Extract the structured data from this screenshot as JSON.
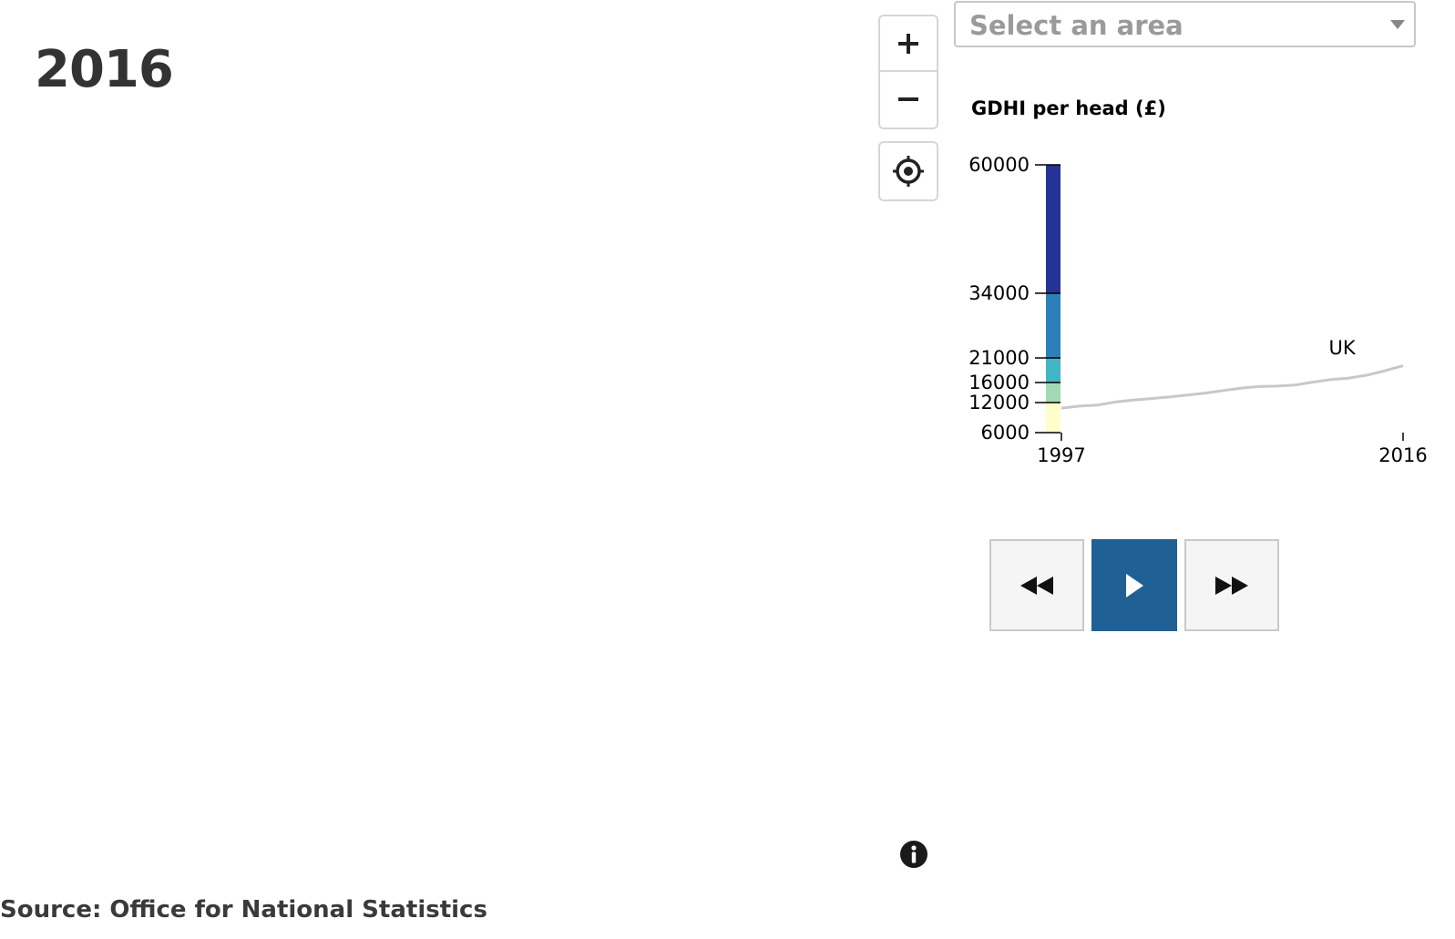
{
  "year_title": "2016",
  "search": {
    "placeholder": "Select an area"
  },
  "map_controls": {
    "zoom_in_icon": "plus-icon",
    "zoom_out_icon": "minus-icon",
    "locate_icon": "crosshair-icon"
  },
  "legend": {
    "title": "GDHI per head (£)",
    "breaks": [
      6000,
      12000,
      16000,
      21000,
      34000,
      60000
    ],
    "colors": [
      "#ffffcc",
      "#a1dab4",
      "#41b6c4",
      "#2c7fb8",
      "#253494"
    ],
    "uk_label": "UK"
  },
  "chart_data": {
    "type": "line",
    "title": "",
    "xlabel": "",
    "ylabel": "GDHI per head (£)",
    "x_ticks": [
      "1997",
      "2016"
    ],
    "y_ticks": [
      6000,
      12000,
      16000,
      21000,
      34000,
      60000
    ],
    "xlim": [
      1997,
      2016
    ],
    "ylim": [
      6000,
      60000
    ],
    "x": [
      1997,
      1998,
      1999,
      2000,
      2001,
      2002,
      2003,
      2004,
      2005,
      2006,
      2007,
      2008,
      2009,
      2010,
      2011,
      2012,
      2013,
      2014,
      2015,
      2016
    ],
    "series": [
      {
        "name": "UK",
        "values": [
          10900,
          11300,
          11500,
          12100,
          12500,
          12800,
          13100,
          13500,
          13900,
          14400,
          14900,
          15200,
          15300,
          15500,
          16100,
          16600,
          16900,
          17500,
          18400,
          19400
        ]
      }
    ],
    "line_color": "#c8c8c8"
  },
  "player": {
    "back_icon": "rewind-icon",
    "play_icon": "play-icon",
    "forward_icon": "fast-forward-icon",
    "play_color": "#206095"
  },
  "info_icon": "info-icon",
  "source": "Source: Office for National Statistics"
}
